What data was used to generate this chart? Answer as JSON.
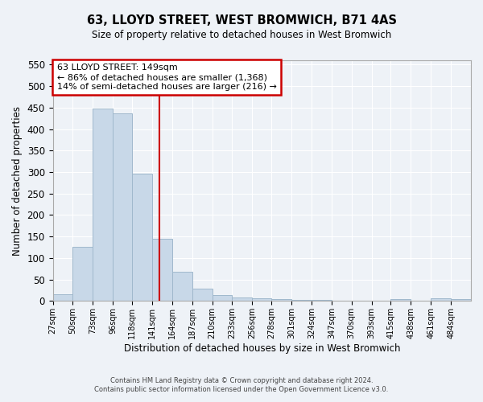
{
  "title": "63, LLOYD STREET, WEST BROMWICH, B71 4AS",
  "subtitle": "Size of property relative to detached houses in West Bromwich",
  "xlabel": "Distribution of detached houses by size in West Bromwich",
  "ylabel": "Number of detached properties",
  "footer_line1": "Contains HM Land Registry data © Crown copyright and database right 2024.",
  "footer_line2": "Contains public sector information licensed under the Open Government Licence v3.0.",
  "bin_labels": [
    "27sqm",
    "50sqm",
    "73sqm",
    "96sqm",
    "118sqm",
    "141sqm",
    "164sqm",
    "187sqm",
    "210sqm",
    "233sqm",
    "256sqm",
    "278sqm",
    "301sqm",
    "324sqm",
    "347sqm",
    "370sqm",
    "393sqm",
    "415sqm",
    "438sqm",
    "461sqm",
    "484sqm"
  ],
  "bar_values": [
    15,
    127,
    447,
    436,
    297,
    144,
    69,
    29,
    14,
    9,
    6,
    4,
    3,
    2,
    1,
    1,
    1,
    4,
    0,
    6,
    5
  ],
  "bar_color": "#c8d8e8",
  "bar_edgecolor": "#a0b8cc",
  "property_line_x": 149,
  "bin_edges_values": [
    27,
    50,
    73,
    96,
    118,
    141,
    164,
    187,
    210,
    233,
    256,
    278,
    301,
    324,
    347,
    370,
    393,
    415,
    438,
    461,
    484,
    507
  ],
  "annotation_text": "63 LLOYD STREET: 149sqm\n← 86% of detached houses are smaller (1,368)\n14% of semi-detached houses are larger (216) →",
  "vline_color": "#cc0000",
  "annotation_box_color": "#cc0000",
  "ylim": [
    0,
    560
  ],
  "yticks": [
    0,
    50,
    100,
    150,
    200,
    250,
    300,
    350,
    400,
    450,
    500,
    550
  ],
  "background_color": "#eef2f7",
  "grid_color": "#ffffff"
}
